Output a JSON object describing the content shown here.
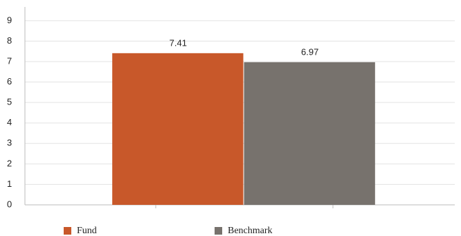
{
  "chart_data": {
    "type": "bar",
    "categories": [
      null
    ],
    "series": [
      {
        "name": "Fund",
        "color": "#c8582a",
        "values": [
          7.41
        ]
      },
      {
        "name": "Benchmark",
        "color": "#77726d",
        "values": [
          6.97
        ]
      }
    ],
    "ylim": [
      0,
      9.67
    ],
    "yticks": [
      0,
      1,
      2,
      3,
      4,
      5,
      6,
      7,
      8,
      9
    ],
    "grid": true
  }
}
